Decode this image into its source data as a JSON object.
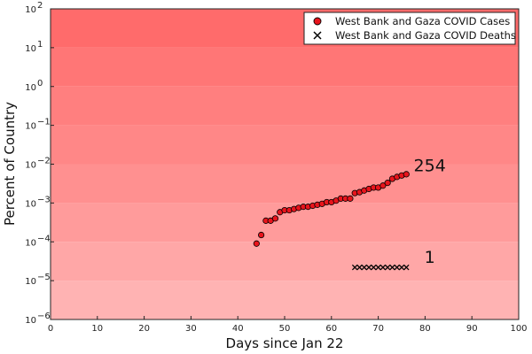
{
  "chart_data": {
    "type": "scatter",
    "xlabel": "Days since Jan 22",
    "ylabel": "Percent of Country",
    "xlim": [
      0,
      100
    ],
    "ylim": [
      1e-06,
      100
    ],
    "yscale": "log",
    "x_ticks": [
      0,
      10,
      20,
      30,
      40,
      50,
      60,
      70,
      80,
      90,
      100
    ],
    "y_ticks": [
      {
        "value": 1e-06,
        "base": "10",
        "exp": "−6"
      },
      {
        "value": 1e-05,
        "base": "10",
        "exp": "−5"
      },
      {
        "value": 0.0001,
        "base": "10",
        "exp": "−4"
      },
      {
        "value": 0.001,
        "base": "10",
        "exp": "−3"
      },
      {
        "value": 0.01,
        "base": "10",
        "exp": "−2"
      },
      {
        "value": 0.1,
        "base": "10",
        "exp": "−1"
      },
      {
        "value": 1,
        "base": "10",
        "exp": "0"
      },
      {
        "value": 10,
        "base": "10",
        "exp": "1"
      },
      {
        "value": 100,
        "base": "10",
        "exp": "2"
      }
    ],
    "grid": false,
    "legend_position": "top-right",
    "background_band_colors": [
      "#ffb3b3",
      "#ffa7a7",
      "#ff9b9b",
      "#ff9090",
      "#ff8787",
      "#ff7f7f",
      "#ff7676",
      "#ff6b6b"
    ],
    "series": [
      {
        "name": "West Bank and Gaza COVID Cases",
        "marker": "circle",
        "color": "#e8141c",
        "x": [
          44,
          45,
          46,
          47,
          48,
          49,
          50,
          51,
          52,
          53,
          54,
          55,
          56,
          57,
          58,
          59,
          60,
          61,
          62,
          63,
          64,
          65,
          66,
          67,
          68,
          69,
          70,
          71,
          72,
          73,
          74,
          75,
          76
        ],
        "y": [
          9e-05,
          0.00015,
          0.00035,
          0.00035,
          0.0004,
          0.00058,
          0.00065,
          0.00065,
          0.0007,
          0.00075,
          0.0008,
          0.0008,
          0.00085,
          0.0009,
          0.00095,
          0.00105,
          0.00105,
          0.00115,
          0.0013,
          0.0013,
          0.0013,
          0.0018,
          0.0019,
          0.0021,
          0.0023,
          0.0025,
          0.0025,
          0.0028,
          0.0033,
          0.0042,
          0.0047,
          0.0051,
          0.0055
        ]
      },
      {
        "name": "West Bank and Gaza COVID Deaths",
        "marker": "x",
        "color": "#000000",
        "x": [
          65,
          66,
          67,
          68,
          69,
          70,
          71,
          72,
          73,
          74,
          75,
          76
        ],
        "y": [
          2.2e-05,
          2.2e-05,
          2.2e-05,
          2.2e-05,
          2.2e-05,
          2.2e-05,
          2.2e-05,
          2.2e-05,
          2.2e-05,
          2.2e-05,
          2.2e-05,
          2.2e-05
        ]
      }
    ],
    "annotations": [
      {
        "text": "254",
        "x": 81,
        "y": 0.0095
      },
      {
        "text": "1",
        "x": 81,
        "y": 4.2e-05
      }
    ]
  }
}
